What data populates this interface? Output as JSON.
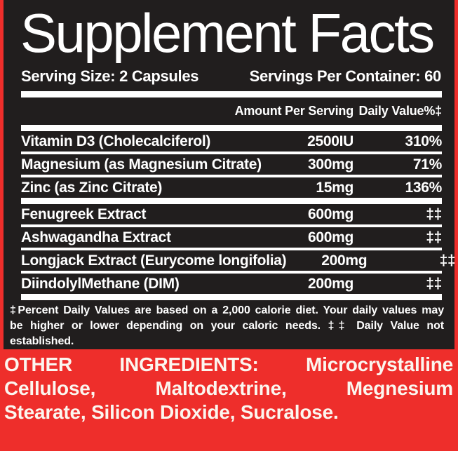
{
  "header": {
    "title": "Supplement Facts",
    "serving_size": "Serving Size: 2 Capsules",
    "servings_per_container": "Servings Per Container: 60"
  },
  "table": {
    "amount_header": "Amount Per Serving",
    "dv_header": "Daily Value%‡",
    "rows": [
      {
        "name": "Vitamin D3 (Cholecalciferol)",
        "amount": "2500IU",
        "dv": "310%"
      },
      {
        "name": "Magnesium (as Magnesium Citrate)",
        "amount": "300mg",
        "dv": "71%"
      },
      {
        "name": "Zinc (as Zinc Citrate)",
        "amount": "15mg",
        "dv": "136%"
      },
      {
        "name": "Fenugreek Extract",
        "amount": "600mg",
        "dv": "‡‡"
      },
      {
        "name": "Ashwagandha Extract",
        "amount": "600mg",
        "dv": "‡‡"
      },
      {
        "name": "Longjack Extract (Eurycome longifolia)",
        "amount": "200mg",
        "dv": "‡‡"
      },
      {
        "name": "DiindolylMethane (DIM)",
        "amount": "200mg",
        "dv": "‡‡"
      }
    ]
  },
  "footnote": {
    "lines": [
      "‡Percent Daily Values are based on a 2,000 calorie diet. Your daily values may",
      "be higher or lower depending on your caloric needs. ‡‡ Daily Value not",
      "established."
    ]
  },
  "other_ingredients": {
    "lines": [
      "OTHER INGREDIENTS: Microcrystalline",
      "Cellulose, Maltodextrine, Megnesium",
      "Stearate, Silicon Dioxide, Sucralose."
    ]
  },
  "colors": {
    "accent_red": "#ee2e2b",
    "panel_black": "#211e1e",
    "text_white": "#ffffff"
  }
}
